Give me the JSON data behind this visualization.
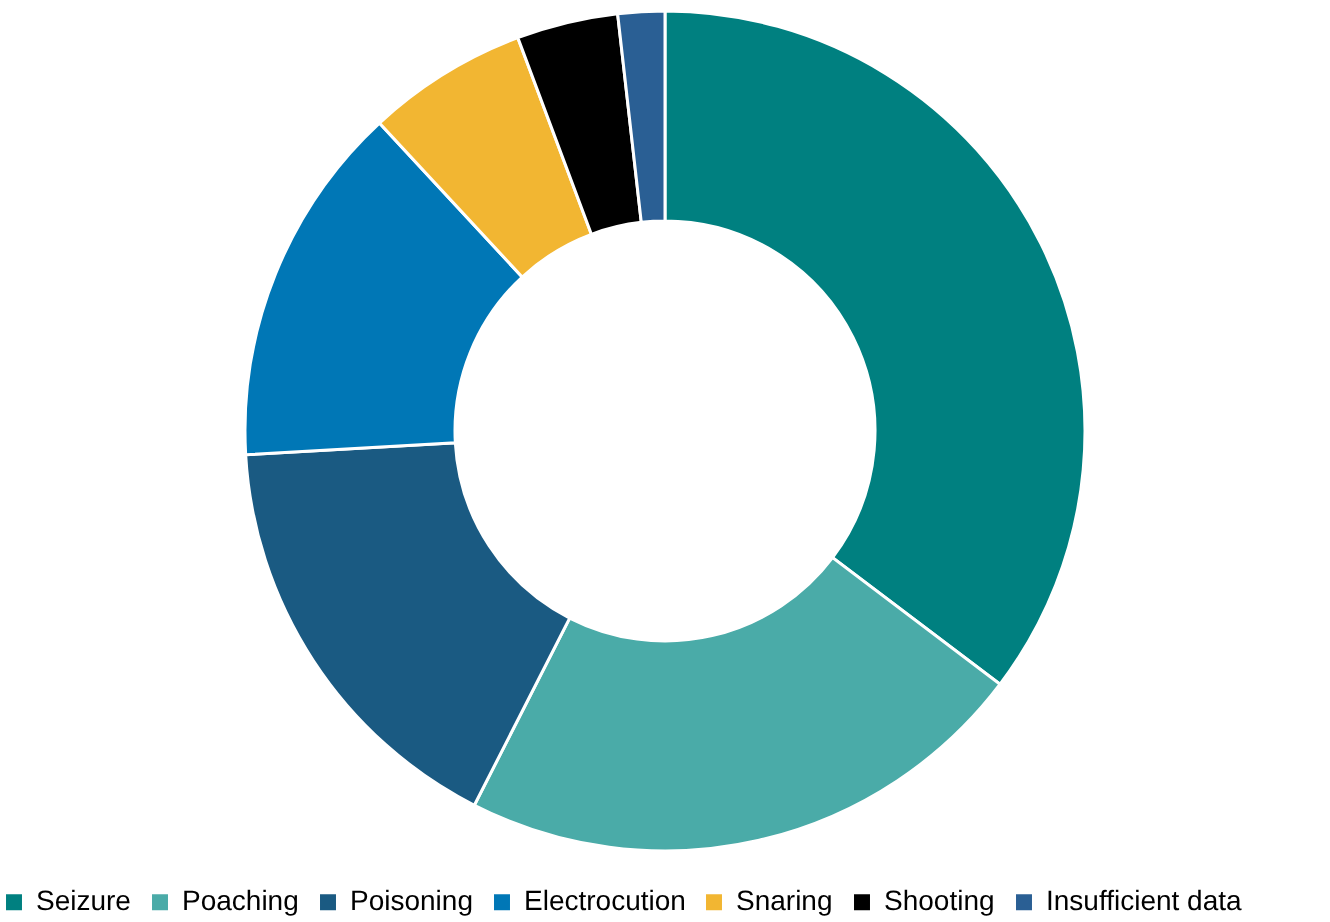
{
  "chart_data": {
    "type": "donut",
    "categories": [
      "Seizure",
      "Poaching",
      "Poisoning",
      "Electrocution",
      "Snaring",
      "Shooting",
      "Insufficient data"
    ],
    "values": [
      35.3,
      22.2,
      16.6,
      14.0,
      6.2,
      3.9,
      1.8
    ],
    "colors": [
      "#008080",
      "#4aaba8",
      "#1a5a82",
      "#0077b6",
      "#f2b632",
      "#000000",
      "#2a5f94"
    ],
    "legend": "bottom"
  }
}
